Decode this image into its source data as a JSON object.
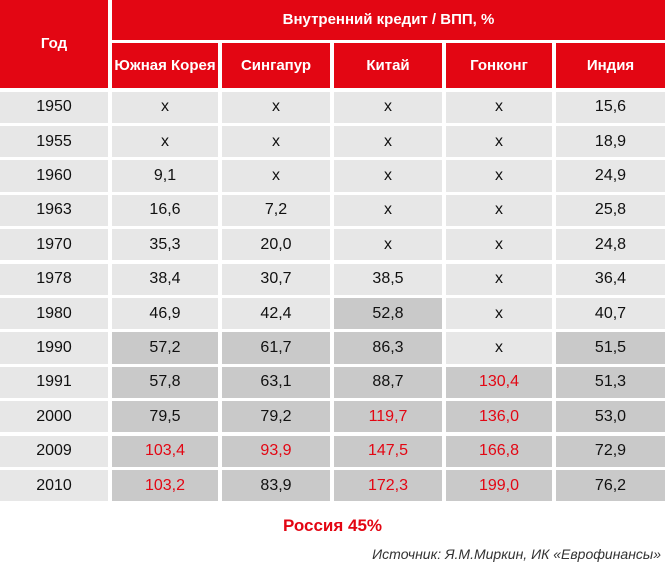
{
  "table": {
    "corner": "Год",
    "group_header": "Внутренний кредит / ВПП, %",
    "columns": [
      "Южная Корея",
      "Сингапур",
      "Китай",
      "Гонконг",
      "Индия"
    ],
    "rows": [
      [
        "1950",
        "х",
        "х",
        "х",
        "х",
        "15,6"
      ],
      [
        "1955",
        "х",
        "х",
        "х",
        "х",
        "18,9"
      ],
      [
        "1960",
        "9,1",
        "х",
        "х",
        "х",
        "24,9"
      ],
      [
        "1963",
        "16,6",
        "7,2",
        "х",
        "х",
        "25,8"
      ],
      [
        "1970",
        "35,3",
        "20,0",
        "х",
        "х",
        "24,8"
      ],
      [
        "1978",
        "38,4",
        "30,7",
        "38,5",
        "х",
        "36,4"
      ],
      [
        "1980",
        "46,9",
        "42,4",
        "52,8",
        "х",
        "40,7"
      ],
      [
        "1990",
        "57,2",
        "61,7",
        "86,3",
        "х",
        "51,5"
      ],
      [
        "1991",
        "57,8",
        "63,1",
        "88,7",
        "130,4",
        "51,3"
      ],
      [
        "2000",
        "79,5",
        "79,2",
        "119,7",
        "136,0",
        "53,0"
      ],
      [
        "2009",
        "103,4",
        "93,9",
        "147,5",
        "166,8",
        "72,9"
      ],
      [
        "2010",
        "103,2",
        "83,9",
        "172,3",
        "199,0",
        "76,2"
      ]
    ]
  },
  "note": "Россия 45%",
  "source": "Источник: Я.М.Миркин, ИК «Еврофинансы»"
}
